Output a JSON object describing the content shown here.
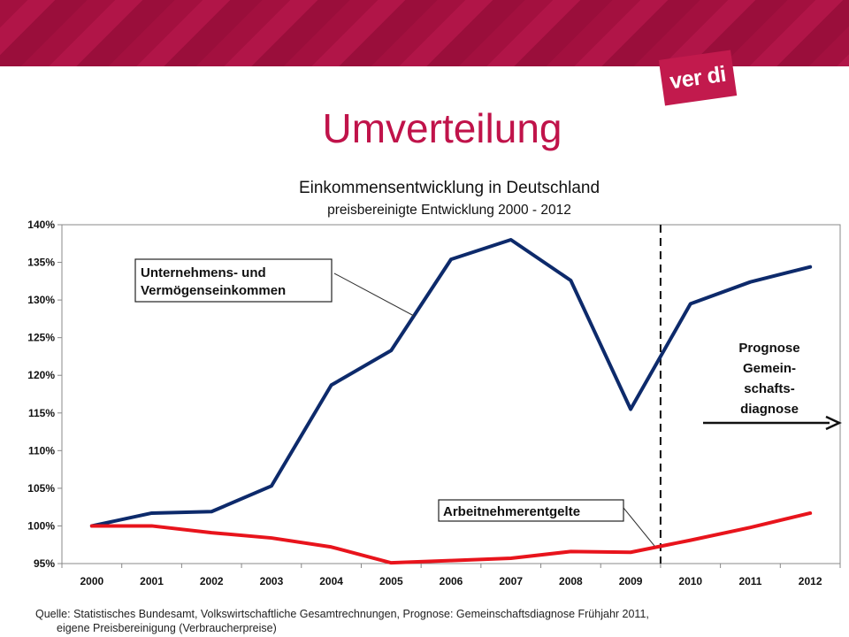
{
  "slide": {
    "title": "Umverteilung",
    "logo_text": "ver di",
    "source_line1": "Quelle: Statistisches Bundesamt, Volkswirtschaftliche Gesamtrechnungen, Prognose: Gemeinschaftsdiagnose Frühjahr 2011,",
    "source_line2": "eigene Preisbereinigung (Verbraucherpreise)"
  },
  "colors": {
    "banner": "#a3103f",
    "title": "#c0134a",
    "series_unternehmen": "#0d2a6b",
    "series_arbeitnehmer": "#e8141c"
  },
  "chart_data": {
    "type": "line",
    "title": "Einkommensentwicklung in Deutschland",
    "subtitle": "preisbereinigte Entwicklung 2000 - 2012",
    "categories": [
      "2000",
      "2001",
      "2002",
      "2003",
      "2004",
      "2005",
      "2006",
      "2007",
      "2008",
      "2009",
      "2010",
      "2011",
      "2012"
    ],
    "y_ticks": [
      "95%",
      "100%",
      "105%",
      "110%",
      "115%",
      "120%",
      "125%",
      "130%",
      "135%",
      "140%"
    ],
    "ylim": [
      95,
      140
    ],
    "series": [
      {
        "name": "Unternehmens- und Vermögenseinkommen",
        "label_lines": [
          "Unternehmens- und",
          "Vermögenseinkommen"
        ],
        "values": [
          100,
          101.7,
          101.9,
          105.3,
          118.7,
          123.3,
          135.4,
          138.0,
          132.6,
          115.5,
          129.5,
          132.4,
          134.4
        ]
      },
      {
        "name": "Arbeitnehmerentgelte",
        "label_lines": [
          "Arbeitnehmerentgelte"
        ],
        "values": [
          100,
          100,
          99.1,
          98.4,
          97.2,
          95.1,
          95.4,
          95.7,
          96.6,
          96.5,
          98.1,
          99.8,
          101.7
        ]
      }
    ],
    "forecast_divider_after": "2009",
    "forecast_label_lines": [
      "Prognose",
      "Gemein-",
      "schafts-",
      "diagnose"
    ],
    "grid": false,
    "legend": "none"
  }
}
